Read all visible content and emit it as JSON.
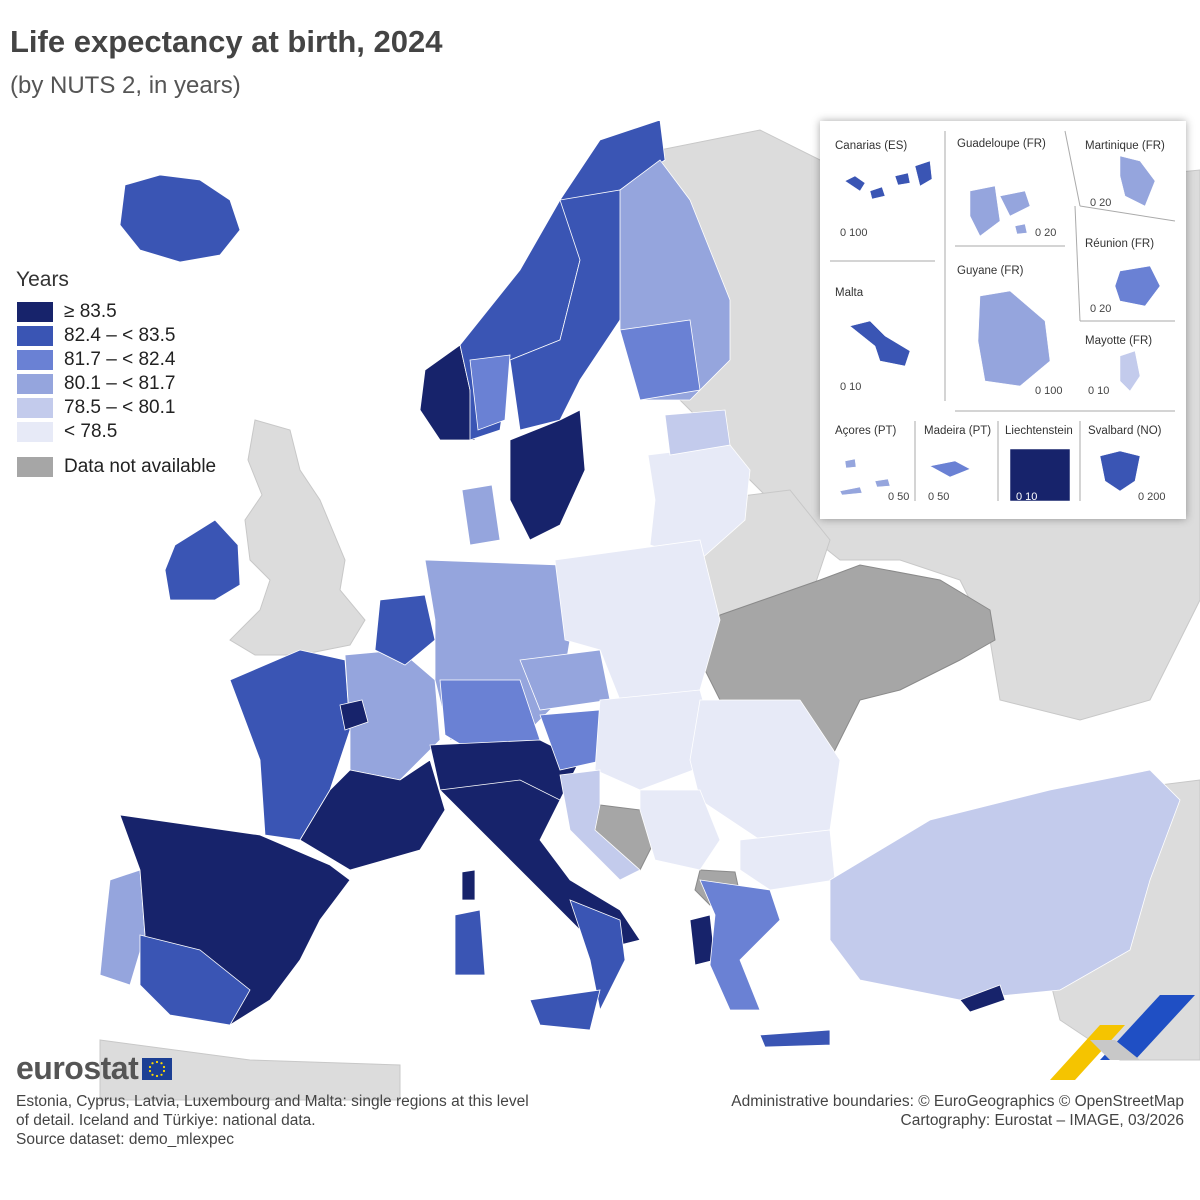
{
  "title": "Life expectancy at birth, 2024",
  "subtitle": "(by NUTS 2, in years)",
  "legend": {
    "title": "Years",
    "classes": [
      {
        "label": "≥ 83.5",
        "color": "#17236b"
      },
      {
        "label": "82.4 – < 83.5",
        "color": "#3a55b4"
      },
      {
        "label": "81.7 – < 82.4",
        "color": "#6a81d4"
      },
      {
        "label": "80.1 – < 81.7",
        "color": "#95a5dd"
      },
      {
        "label": "78.5 – < 80.1",
        "color": "#c3cbec"
      },
      {
        "label": "< 78.5",
        "color": "#e7eaf7"
      }
    ],
    "na_label": "Data not available",
    "na_color": "#a6a6a6",
    "non_member_color": "#dcdcdc",
    "sea_color": "#ffffff"
  },
  "insets": {
    "canarias": {
      "label": "Canarias (ES)",
      "scale": "0   100"
    },
    "guadeloupe": {
      "label": "Guadeloupe (FR)",
      "scale": "0  20"
    },
    "martinique": {
      "label": "Martinique (FR)",
      "scale": "0  20"
    },
    "reunion": {
      "label": "Réunion (FR)",
      "scale": "0  20"
    },
    "malta": {
      "label": "Malta",
      "scale": "0  10"
    },
    "guyane": {
      "label": "Guyane (FR)",
      "scale": "0   100"
    },
    "mayotte": {
      "label": "Mayotte (FR)",
      "scale": "0 10"
    },
    "acores": {
      "label": "Açores (PT)",
      "scale": "0  50"
    },
    "madeira": {
      "label": "Madeira (PT)",
      "scale": "0    50"
    },
    "liechtenstein": {
      "label": "Liechtenstein",
      "scale": "0  10"
    },
    "svalbard": {
      "label": "Svalbard (NO)",
      "scale": "0    200"
    }
  },
  "logo": "eurostat",
  "footnote_left": [
    "Estonia, Cyprus, Latvia, Luxembourg and Malta: single regions at this level",
    "of detail. Iceland and Türkiye: national data.",
    "Source dataset: demo_mlexpec"
  ],
  "footnote_right": [
    "Administrative boundaries: © EuroGeographics © OpenStreetMap",
    "Cartography: Eurostat – IMAGE, 03/2026"
  ],
  "regions": [
    {
      "name": "Iceland",
      "class": 1
    },
    {
      "name": "Ireland",
      "class": 1
    },
    {
      "name": "Norway west",
      "class": 0
    },
    {
      "name": "Norway north",
      "class": 1
    },
    {
      "name": "Sweden south",
      "class": 0
    },
    {
      "name": "Sweden north",
      "class": 1
    },
    {
      "name": "Finland",
      "class": 3
    },
    {
      "name": "Spain",
      "class": 0
    },
    {
      "name": "Portugal",
      "class": 1
    },
    {
      "name": "France west",
      "class": 1
    },
    {
      "name": "France south",
      "class": 0
    },
    {
      "name": "France north",
      "class": 3
    },
    {
      "name": "Italy",
      "class": 0
    },
    {
      "name": "Germany",
      "class": 3
    },
    {
      "name": "Poland",
      "class": 5
    },
    {
      "name": "Baltics",
      "class": 5
    },
    {
      "name": "Romania",
      "class": 5
    },
    {
      "name": "Bulgaria",
      "class": 5
    },
    {
      "name": "Greece",
      "class": 2
    },
    {
      "name": "Türkiye",
      "class": 4
    },
    {
      "name": "Cyprus",
      "class": 0
    },
    {
      "name": "Ukraine",
      "class": "na"
    },
    {
      "name": "Bosnia and Herzegovina",
      "class": "na"
    }
  ]
}
